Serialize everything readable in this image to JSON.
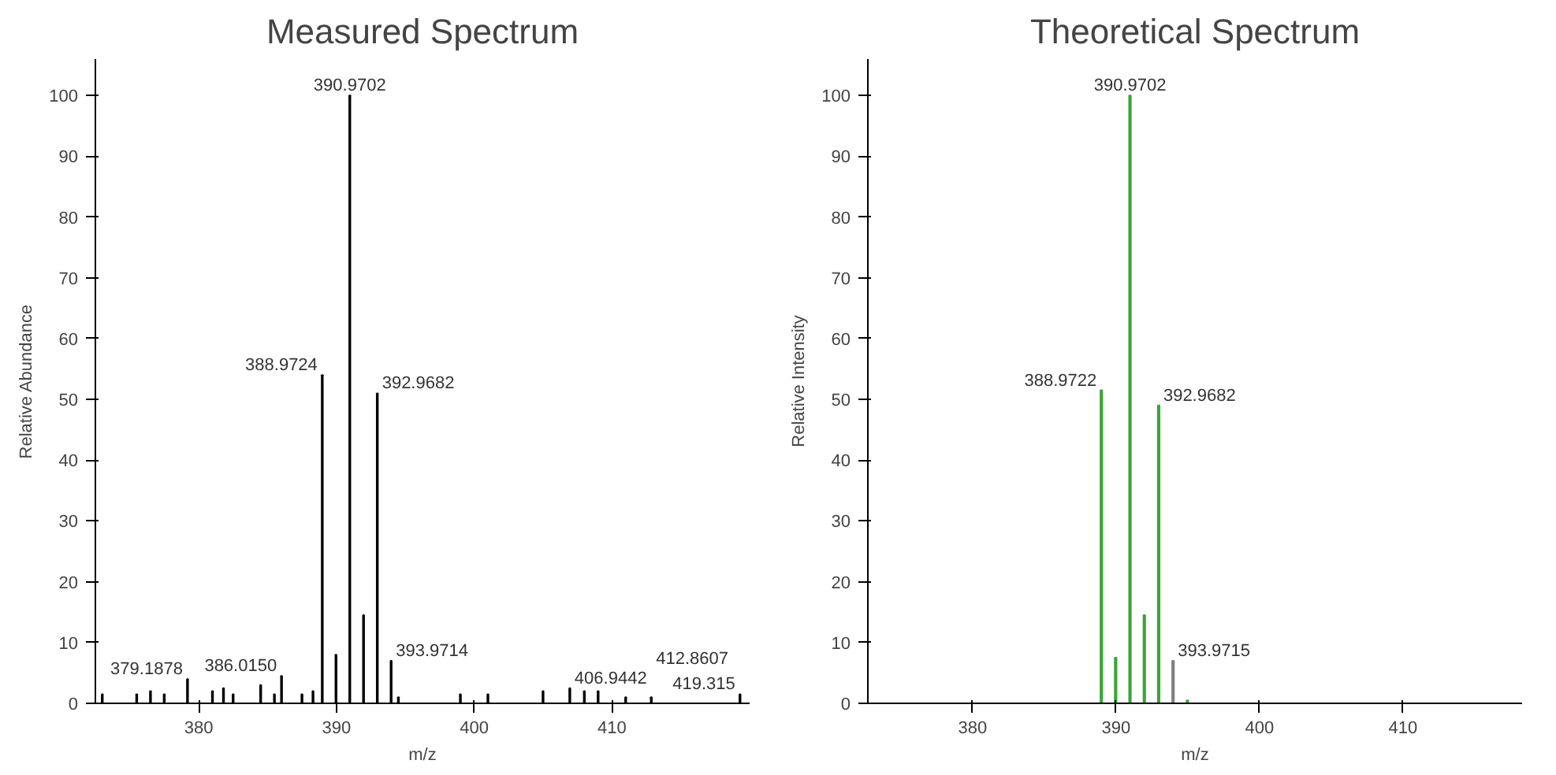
{
  "chart_data": [
    {
      "type": "bar",
      "title": "Measured Spectrum",
      "xlabel": "m/z",
      "ylabel": "Relative Abundance",
      "x": [
        373.0,
        375.5,
        376.5,
        377.5,
        379.1878,
        381.0,
        381.8,
        382.5,
        384.5,
        385.5,
        386.015,
        387.5,
        388.3,
        388.9724,
        389.97,
        390.9702,
        391.97,
        392.9682,
        393.9714,
        394.5,
        399.0,
        401.0,
        405.0,
        406.9442,
        408.0,
        409.0,
        411.0,
        412.8607,
        419.3
      ],
      "values": [
        1.5,
        1.5,
        2,
        1.5,
        4,
        2,
        2.5,
        1.5,
        3,
        1.5,
        4.5,
        1.5,
        2,
        54,
        8,
        100,
        14.5,
        51,
        7,
        1,
        1.5,
        1.5,
        2,
        2.5,
        2,
        2,
        1,
        1,
        1.5
      ],
      "color": "#000000",
      "xlim": [
        372.5,
        420
      ],
      "xticks": [
        380,
        390,
        400,
        410
      ],
      "ylim": [
        0,
        106
      ],
      "yticks": [
        0,
        10,
        20,
        30,
        40,
        50,
        60,
        70,
        80,
        90,
        100
      ],
      "grid": false,
      "annotations": [
        {
          "text": "379.1878",
          "x": 379.1878,
          "y": 4
        },
        {
          "text": "386.0150",
          "x": 386.015,
          "y": 4.5
        },
        {
          "text": "388.9724",
          "x": 388.9724,
          "y": 54
        },
        {
          "text": "390.9702",
          "x": 390.9702,
          "y": 100
        },
        {
          "text": "392.9682",
          "x": 392.9682,
          "y": 51
        },
        {
          "text": "393.9714",
          "x": 393.9714,
          "y": 7
        },
        {
          "text": "406.9442",
          "x": 406.9442,
          "y": 2.5
        },
        {
          "text": "412.8607",
          "x": 412.8607,
          "y": 1
        },
        {
          "text": "419.315",
          "x": 419.3,
          "y": 1.5
        }
      ]
    },
    {
      "type": "bar",
      "title": "Theoretical Spectrum",
      "xlabel": "m/z",
      "ylabel": "Relative Intensity",
      "x": [
        388.9722,
        389.97,
        390.9702,
        391.97,
        392.9682,
        393.9715,
        394.97
      ],
      "values": [
        51.5,
        7.5,
        100,
        14.5,
        49,
        7,
        0.5
      ],
      "colors": [
        "#3aa635",
        "#3aa635",
        "#3aa635",
        "#3aa635",
        "#3aa635",
        "#808080",
        "#3aa635"
      ],
      "xlim": [
        372.7,
        418.3
      ],
      "xticks": [
        380,
        390,
        400,
        410
      ],
      "ylim": [
        0,
        106
      ],
      "yticks": [
        0,
        10,
        20,
        30,
        40,
        50,
        60,
        70,
        80,
        90,
        100
      ],
      "grid": false,
      "annotations": [
        {
          "text": "388.9722",
          "x": 388.9722,
          "y": 51.5
        },
        {
          "text": "390.9702",
          "x": 390.9702,
          "y": 100
        },
        {
          "text": "392.9682",
          "x": 392.9682,
          "y": 49
        },
        {
          "text": "393.9715",
          "x": 393.9715,
          "y": 7
        }
      ]
    }
  ]
}
